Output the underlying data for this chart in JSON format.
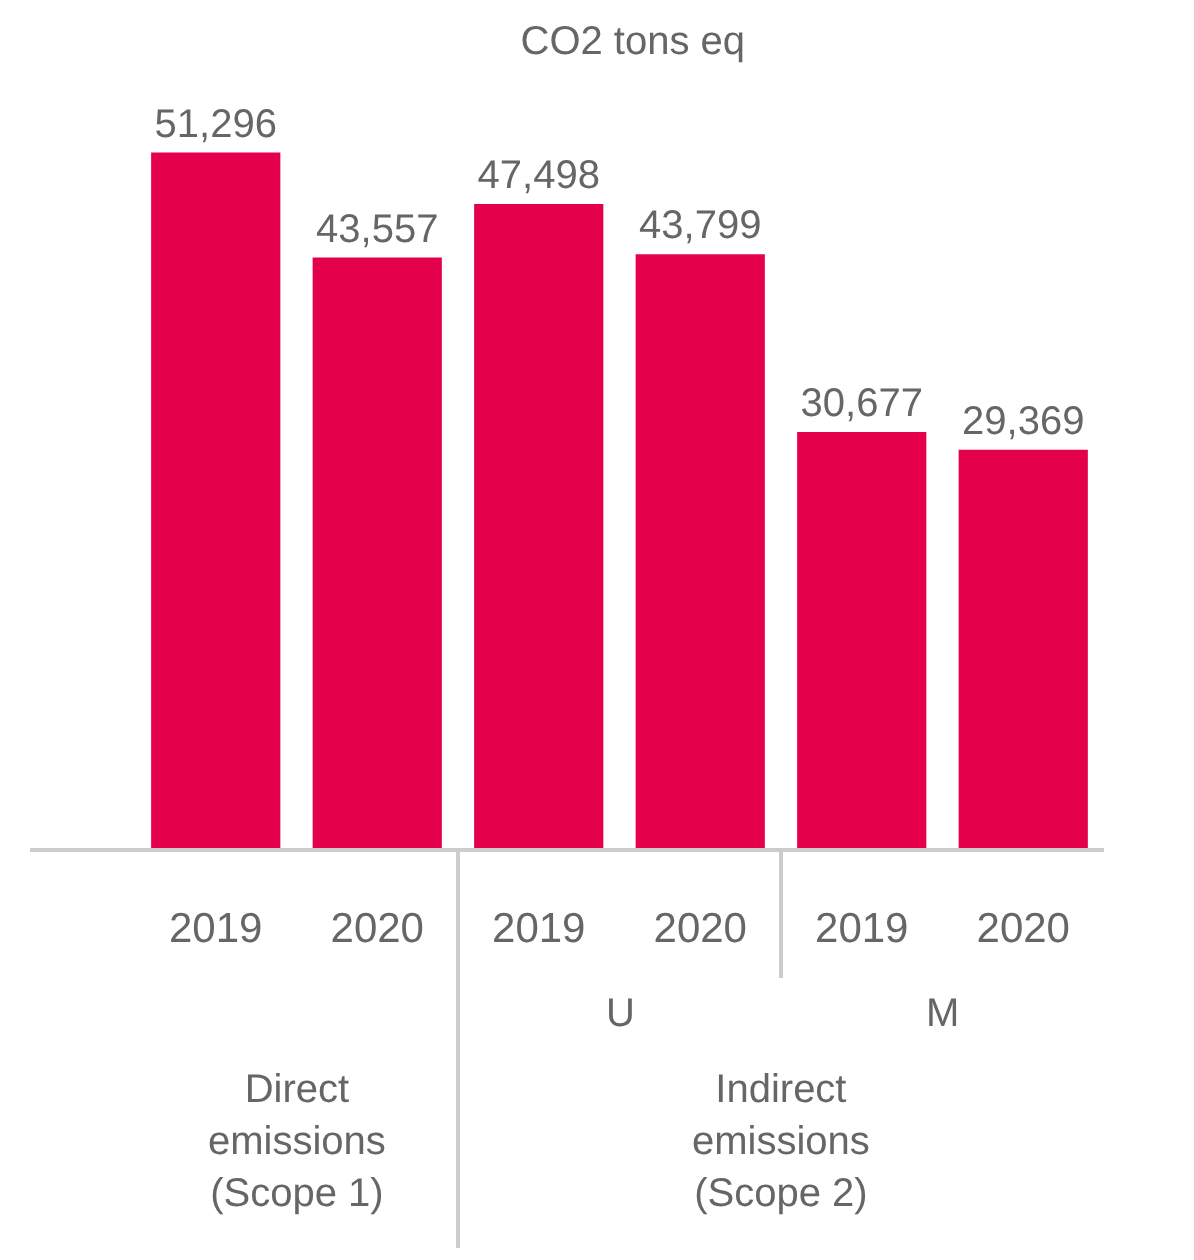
{
  "chart_data": {
    "type": "bar",
    "title": "CO2 tons eq",
    "categories": [
      "2019",
      "2020",
      "2019",
      "2020",
      "2019",
      "2020"
    ],
    "values": [
      51296,
      43557,
      47498,
      43799,
      30677,
      29369
    ],
    "color": "#e4004b",
    "value_labels": [
      "51,296",
      "43,557",
      "47,498",
      "43,799",
      "30,677",
      "29,369"
    ],
    "annotations": [
      "U",
      "M",
      "Direct\nemissions\n(Scope 1)",
      "Indirect\nemissions\n(Scope 2)"
    ]
  }
}
